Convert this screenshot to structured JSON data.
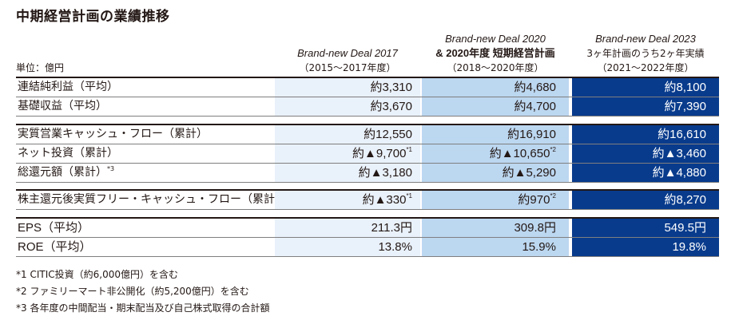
{
  "title": "中期経営計画の業績推移",
  "unit_label": "単位：億円",
  "columns": [
    {
      "line1": "Brand-new Deal 2017",
      "line2": "",
      "line3": "（2015〜2017年度）"
    },
    {
      "line1": "Brand-new Deal 2020",
      "line2": "& 2020年度 短期経営計画",
      "line3": "（2018〜2020年度）"
    },
    {
      "line1": "Brand-new Deal 2023",
      "line2": "3ヶ年計画のうち2ヶ年実績",
      "line3": "（2021〜2022年度）"
    }
  ],
  "rows": [
    {
      "label": "連結純利益（平均）",
      "v1": "約3,310",
      "v2": "約4,680",
      "v3": "約8,100"
    },
    {
      "label": "基礎収益（平均）",
      "v1": "約3,670",
      "v2": "約4,700",
      "v3": "約7,390"
    },
    {
      "label": "実質営業キャッシュ・フロー（累計）",
      "v1": "約12,550",
      "v2": "約16,910",
      "v3": "約16,610"
    },
    {
      "label": "ネット投資（累計）",
      "v1": "約▲9,700",
      "v1_note": "*1",
      "v2": "約▲10,650",
      "v2_note": "*2",
      "v3": "約▲3,460"
    },
    {
      "label": "総還元額（累計）",
      "label_note": "*3",
      "v1": "約▲3,180",
      "v2": "約▲5,290",
      "v3": "約▲4,880"
    },
    {
      "label": "株主還元後実質フリー・キャッシュ・フロー（累計）",
      "v1": "約▲330",
      "v1_note": "*1",
      "v2": "約970",
      "v2_note": "*2",
      "v3": "約8,270"
    },
    {
      "label": "EPS（平均）",
      "v1": "211.3円",
      "v2": "309.8円",
      "v3": "549.5円"
    },
    {
      "label": "ROE（平均）",
      "v1": "13.8%",
      "v2": "15.9%",
      "v3": "19.8%"
    }
  ],
  "notes": [
    "*1 CITIC投資（約6,000億円）を含む",
    "*2 ファミリーマート非公開化（約5,200億円）を含む",
    "*3 各年度の中間配当・期末配当及び自己株式取得の合計額"
  ]
}
